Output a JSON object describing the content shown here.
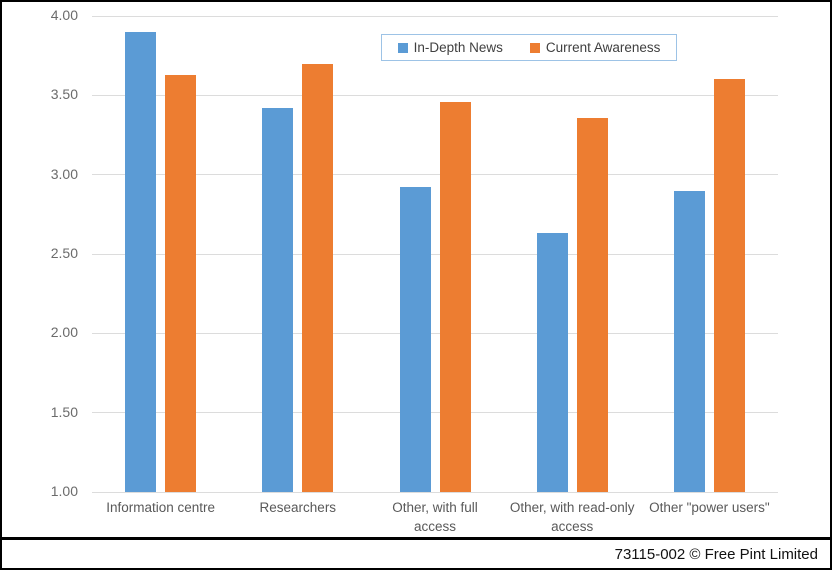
{
  "window": {
    "footer_credit": "73115-002 © Free Pint Limited"
  },
  "chart_data": {
    "type": "bar",
    "title": "",
    "xlabel": "",
    "ylabel": "",
    "categories": [
      "Information centre",
      "Researchers",
      "Other, with full\naccess",
      "Other, with read-only\naccess",
      "Other \"power users\""
    ],
    "series": [
      {
        "name": "In-Depth News",
        "color": "#5B9BD5",
        "values": [
          3.9,
          3.42,
          2.92,
          2.63,
          2.9
        ]
      },
      {
        "name": "Current Awareness",
        "color": "#ED7D31",
        "values": [
          3.63,
          3.7,
          3.46,
          3.36,
          3.6
        ]
      }
    ],
    "ylim": [
      1.0,
      4.0
    ],
    "yticks": [
      1.0,
      1.5,
      2.0,
      2.5,
      3.0,
      3.5,
      4.0
    ],
    "ytick_labels": [
      "1.00",
      "1.50",
      "2.00",
      "2.50",
      "3.00",
      "3.50",
      "4.00"
    ],
    "grid": "horizontal",
    "legend_position": "top-center-inside",
    "colors": {
      "gridline": "#DCDCDC",
      "axis_tick_text": "#6B6B6B",
      "category_text": "#595959",
      "legend_border": "#9DC3E6",
      "legend_text": "#404040",
      "frame_border": "#000000"
    }
  }
}
